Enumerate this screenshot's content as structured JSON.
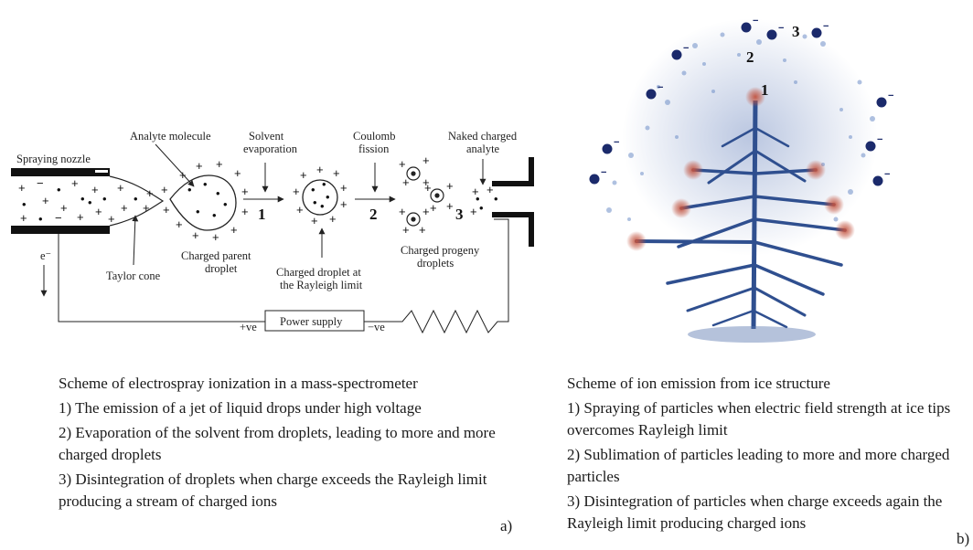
{
  "panel_a": {
    "labels": {
      "spraying_nozzle": "Spraying nozzle",
      "analyte_molecule": "Analyte molecule",
      "solvent_evaporation_1": "Solvent",
      "solvent_evaporation_2": "evaporation",
      "coulomb_fission_1": "Coulomb",
      "coulomb_fission_2": "fission",
      "naked_analyte_1": "Naked charged",
      "naked_analyte_2": "analyte",
      "charged_parent_1": "Charged parent",
      "charged_parent_2": "droplet",
      "taylor_cone": "Taylor cone",
      "rayleigh_1": "Charged droplet at",
      "rayleigh_2": "the Rayleigh limit",
      "progeny_1": "Charged progeny",
      "progeny_2": "droplets",
      "electron": "e⁻",
      "power_supply": "Power supply",
      "plus_ve": "+ve",
      "minus_ve": "−ve",
      "step1": "1",
      "step2": "2",
      "step3": "3"
    },
    "caption": {
      "heading": "Scheme of electrospray ionization in a mass-spectrometer",
      "item1": "1) The emission of a jet of liquid drops under high voltage",
      "item2": "2) Evaporation of the solvent from droplets, leading to more and more charged droplets",
      "item3": "3) Disintegration of droplets when charge exceeds the Rayleigh limit producing a stream of charged ions"
    },
    "tag": "a)"
  },
  "panel_b": {
    "labels": {
      "step1": "1",
      "step2": "2",
      "step3": "3"
    },
    "caption": {
      "heading": "Scheme of ion emission from ice structure",
      "item1": "1) Spraying of particles when electric field strength at ice tips overcomes Rayleigh limit",
      "item2": "2) Sublimation of particles leading to more and more charged particles",
      "item3": "3) Disintegration of particles when charge exceeds again the Rayleigh limit producing charged ions"
    },
    "tag": "b)"
  },
  "colors": {
    "ice_blue": "#2f4f8f",
    "ion_dark_blue": "#1b2a6b",
    "glow_red": "#c2533f",
    "line": "#222222"
  }
}
